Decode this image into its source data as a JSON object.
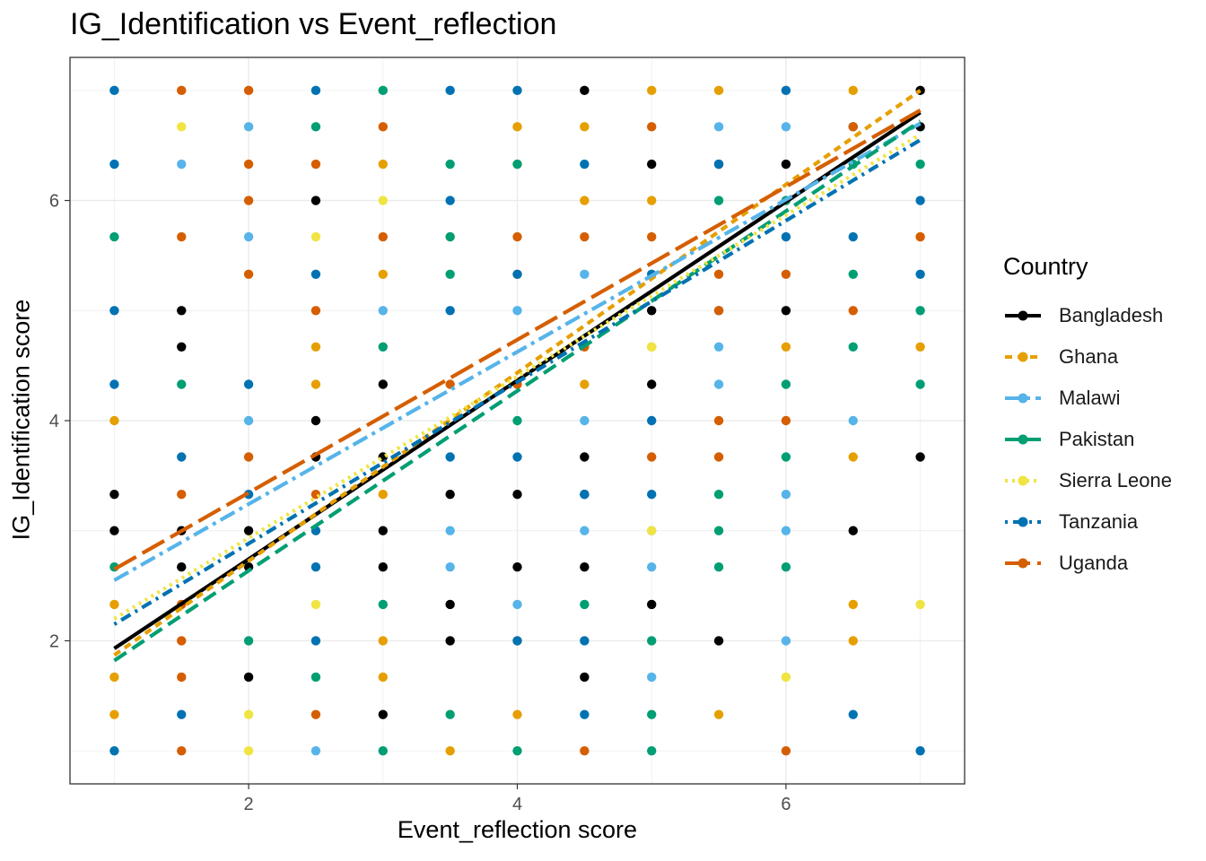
{
  "chart_data": {
    "type": "scatter",
    "title": "IG_Identification vs Event_reflection",
    "xlabel": "Event_reflection score",
    "ylabel": "IG_Identification score",
    "xlim": [
      0.67,
      7.33
    ],
    "ylim": [
      0.7,
      7.3
    ],
    "xticks": [
      2,
      4,
      6
    ],
    "yticks": [
      2,
      4,
      6
    ],
    "grid": true,
    "legend": {
      "title": "Country",
      "position": "right"
    },
    "series": [
      {
        "name": "Bangladesh",
        "color": "#000000",
        "dash": "solid",
        "fit": [
          [
            1,
            1.93
          ],
          [
            7,
            6.8
          ]
        ],
        "points": [
          [
            1,
            3.33
          ],
          [
            1,
            3
          ],
          [
            1.5,
            5
          ],
          [
            1.5,
            4.67
          ],
          [
            1.5,
            3
          ],
          [
            1.5,
            2.67
          ],
          [
            2,
            3
          ],
          [
            2,
            2.67
          ],
          [
            2,
            1.67
          ],
          [
            2.5,
            6
          ],
          [
            2.5,
            4
          ],
          [
            2.5,
            3.67
          ],
          [
            3,
            4.33
          ],
          [
            3,
            3.67
          ],
          [
            3,
            3
          ],
          [
            3,
            2.67
          ],
          [
            3,
            1.33
          ],
          [
            3.5,
            3.33
          ],
          [
            3.5,
            2.33
          ],
          [
            3.5,
            2
          ],
          [
            4,
            3.33
          ],
          [
            4,
            2.67
          ],
          [
            4.5,
            7
          ],
          [
            4.5,
            3.67
          ],
          [
            4.5,
            3.33
          ],
          [
            4.5,
            2.67
          ],
          [
            4.5,
            1.67
          ],
          [
            5,
            6.33
          ],
          [
            5,
            5
          ],
          [
            5,
            4.33
          ],
          [
            5,
            2.33
          ],
          [
            5.5,
            6.33
          ],
          [
            5.5,
            2
          ],
          [
            6,
            6.33
          ],
          [
            6,
            5
          ],
          [
            6.5,
            3
          ],
          [
            7,
            7
          ],
          [
            7,
            6.67
          ],
          [
            7,
            3.67
          ]
        ]
      },
      {
        "name": "Ghana",
        "color": "#E69F00",
        "dash": "8,6",
        "fit": [
          [
            1,
            1.87
          ],
          [
            7,
            7.0
          ]
        ],
        "points": [
          [
            1,
            2.33
          ],
          [
            1,
            1.67
          ],
          [
            1,
            1.33
          ],
          [
            1,
            4
          ],
          [
            2.5,
            4.67
          ],
          [
            2.5,
            4.33
          ],
          [
            3,
            6.33
          ],
          [
            3,
            5.33
          ],
          [
            3,
            3.33
          ],
          [
            3,
            2
          ],
          [
            3,
            1.67
          ],
          [
            3.5,
            5.67
          ],
          [
            3.5,
            1
          ],
          [
            4,
            6.67
          ],
          [
            4,
            6.33
          ],
          [
            4,
            5.33
          ],
          [
            4,
            2
          ],
          [
            4,
            1.33
          ],
          [
            4.5,
            6.67
          ],
          [
            4.5,
            6
          ],
          [
            4.5,
            4.33
          ],
          [
            5,
            7
          ],
          [
            5,
            6
          ],
          [
            5,
            4.67
          ],
          [
            5.5,
            7
          ],
          [
            5.5,
            1.33
          ],
          [
            6,
            4.67
          ],
          [
            6.5,
            7
          ],
          [
            6.5,
            3.67
          ],
          [
            6.5,
            2.33
          ],
          [
            6.5,
            2
          ],
          [
            7,
            5.67
          ],
          [
            7,
            4.67
          ]
        ]
      },
      {
        "name": "Malawi",
        "color": "#56B4E9",
        "dash": "18,6,4,6",
        "fit": [
          [
            1,
            2.55
          ],
          [
            7,
            6.7
          ]
        ],
        "points": [
          [
            1.5,
            6.33
          ],
          [
            2,
            6.67
          ],
          [
            2,
            5.67
          ],
          [
            2,
            4
          ],
          [
            2.5,
            1
          ],
          [
            3,
            5
          ],
          [
            3.5,
            3
          ],
          [
            3.5,
            2.67
          ],
          [
            4,
            5
          ],
          [
            4,
            2.33
          ],
          [
            4.5,
            5.33
          ],
          [
            4.5,
            4
          ],
          [
            4.5,
            3
          ],
          [
            5,
            2.67
          ],
          [
            5,
            1.67
          ],
          [
            5,
            3
          ],
          [
            5.5,
            6.67
          ],
          [
            5.5,
            4.67
          ],
          [
            5.5,
            4.33
          ],
          [
            6,
            6.67
          ],
          [
            6,
            3.33
          ],
          [
            6,
            3
          ],
          [
            6,
            2
          ],
          [
            6.5,
            4
          ]
        ]
      },
      {
        "name": "Pakistan",
        "color": "#009E73",
        "dash": "16,8",
        "fit": [
          [
            1,
            1.82
          ],
          [
            7,
            6.72
          ]
        ],
        "points": [
          [
            1,
            5.67
          ],
          [
            1,
            2.67
          ],
          [
            1.5,
            4.33
          ],
          [
            2,
            2
          ],
          [
            2.5,
            6.67
          ],
          [
            2.5,
            1.67
          ],
          [
            3,
            7
          ],
          [
            3,
            4.67
          ],
          [
            3,
            2.33
          ],
          [
            3,
            1
          ],
          [
            3.5,
            6.33
          ],
          [
            3.5,
            5.67
          ],
          [
            3.5,
            5.33
          ],
          [
            3.5,
            1.33
          ],
          [
            4,
            6.33
          ],
          [
            4,
            4
          ],
          [
            4,
            1
          ],
          [
            4.5,
            2.33
          ],
          [
            5,
            2
          ],
          [
            5,
            1.33
          ],
          [
            5,
            1
          ],
          [
            5.5,
            6
          ],
          [
            5.5,
            3.33
          ],
          [
            5.5,
            3
          ],
          [
            5.5,
            2.67
          ],
          [
            6,
            6
          ],
          [
            6,
            4.33
          ],
          [
            6,
            3.67
          ],
          [
            6,
            2.67
          ],
          [
            6.5,
            6.33
          ],
          [
            6.5,
            5.33
          ],
          [
            6.5,
            4.67
          ],
          [
            7,
            6.33
          ],
          [
            7,
            5
          ],
          [
            7,
            4.33
          ]
        ]
      },
      {
        "name": "Sierra Leone",
        "color": "#F0E442",
        "dash": "3,5",
        "fit": [
          [
            1,
            2.2
          ],
          [
            7,
            6.6
          ]
        ],
        "points": [
          [
            1.5,
            6.67
          ],
          [
            2,
            1.33
          ],
          [
            2,
            1
          ],
          [
            2.5,
            5.67
          ],
          [
            2.5,
            2.33
          ],
          [
            3,
            6
          ],
          [
            5,
            4.67
          ],
          [
            5,
            3
          ],
          [
            6,
            1.67
          ],
          [
            7,
            2.33
          ]
        ]
      },
      {
        "name": "Tanzania",
        "color": "#0072B2",
        "dash": "3,6,12,6",
        "fit": [
          [
            1,
            2.15
          ],
          [
            7,
            6.55
          ]
        ],
        "points": [
          [
            1,
            7
          ],
          [
            1,
            6.33
          ],
          [
            1,
            5
          ],
          [
            1,
            4.33
          ],
          [
            1,
            1
          ],
          [
            1.5,
            3.67
          ],
          [
            1.5,
            1.33
          ],
          [
            2,
            4.33
          ],
          [
            2,
            3.33
          ],
          [
            2.5,
            7
          ],
          [
            2.5,
            5.33
          ],
          [
            2.5,
            3
          ],
          [
            2.5,
            2.67
          ],
          [
            2.5,
            2
          ],
          [
            3.5,
            7
          ],
          [
            3.5,
            6
          ],
          [
            3.5,
            5
          ],
          [
            3.5,
            3.67
          ],
          [
            4,
            7
          ],
          [
            4,
            5.33
          ],
          [
            4,
            3.67
          ],
          [
            4,
            2
          ],
          [
            4.5,
            6.33
          ],
          [
            4.5,
            3.33
          ],
          [
            4.5,
            2
          ],
          [
            4.5,
            1.33
          ],
          [
            5,
            5.33
          ],
          [
            5,
            4
          ],
          [
            5,
            3.33
          ],
          [
            5.5,
            6.33
          ],
          [
            5.5,
            5
          ],
          [
            6,
            7
          ],
          [
            6,
            5.67
          ],
          [
            6.5,
            6.67
          ],
          [
            6.5,
            5.67
          ],
          [
            6.5,
            1.33
          ],
          [
            7,
            6
          ],
          [
            7,
            5.33
          ],
          [
            7,
            1
          ]
        ]
      },
      {
        "name": "Uganda",
        "color": "#D55E00",
        "dash": "28,8",
        "fit": [
          [
            1,
            2.65
          ],
          [
            7,
            6.82
          ]
        ],
        "points": [
          [
            1.5,
            7
          ],
          [
            1.5,
            5.67
          ],
          [
            1.5,
            3.33
          ],
          [
            1.5,
            2.33
          ],
          [
            1.5,
            2
          ],
          [
            1.5,
            1.67
          ],
          [
            1.5,
            1
          ],
          [
            2,
            7
          ],
          [
            2,
            6.33
          ],
          [
            2,
            6
          ],
          [
            2,
            5.33
          ],
          [
            2,
            3.67
          ],
          [
            2.5,
            6.33
          ],
          [
            2.5,
            5
          ],
          [
            2.5,
            3.33
          ],
          [
            2.5,
            1.33
          ],
          [
            3,
            6.67
          ],
          [
            3,
            5.67
          ],
          [
            3.5,
            4.33
          ],
          [
            4,
            5.67
          ],
          [
            4,
            4.33
          ],
          [
            4.5,
            5.67
          ],
          [
            4.5,
            4.67
          ],
          [
            4.5,
            1
          ],
          [
            5,
            6.67
          ],
          [
            5,
            5.67
          ],
          [
            5,
            3.67
          ],
          [
            5.5,
            5.33
          ],
          [
            5.5,
            5
          ],
          [
            5.5,
            4
          ],
          [
            5.5,
            3.67
          ],
          [
            6,
            5.33
          ],
          [
            6,
            4
          ],
          [
            6,
            1
          ],
          [
            6.5,
            6.67
          ],
          [
            6.5,
            5
          ],
          [
            7,
            5.67
          ]
        ]
      }
    ]
  }
}
